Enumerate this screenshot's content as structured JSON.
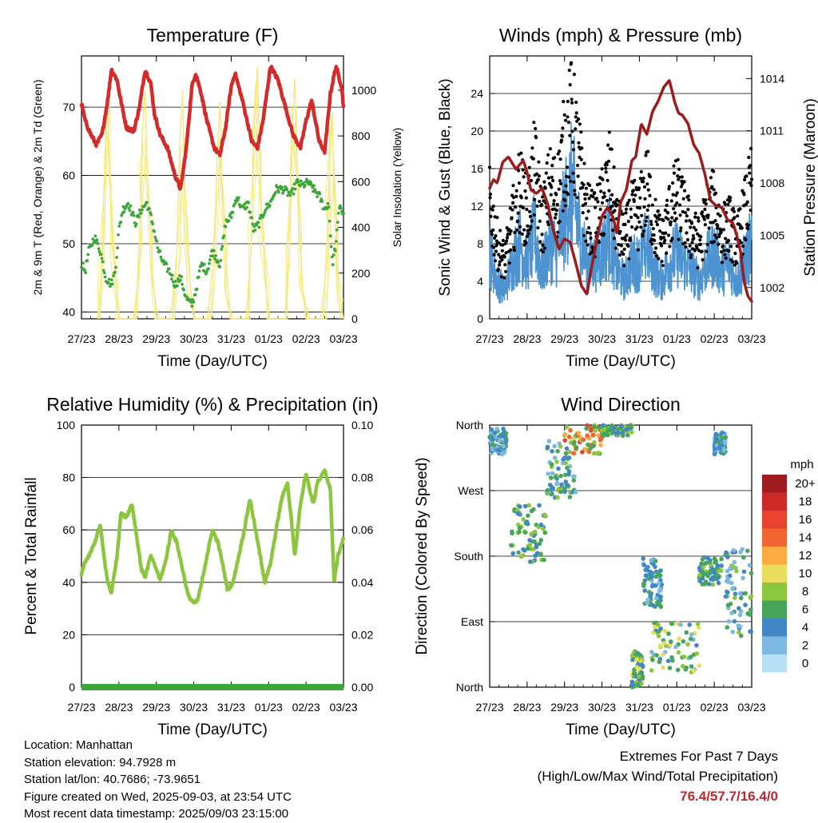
{
  "panels": {
    "temperature": {
      "title": "Temperature (F)",
      "ylabel_left": "2m & 9m T (Red, Orange) & 2m Td (Green)",
      "ylabel_right": "Solar Insolation (Yellow)",
      "xlabel": "Time (Day/UTC)"
    },
    "winds": {
      "title": "Winds (mph) & Pressure (mb)",
      "ylabel_left": "Sonic Wind & Gust (Blue, Black)",
      "ylabel_right": "Station Pressure (Maroon)",
      "xlabel": "Time (Day/UTC)"
    },
    "humidity": {
      "title": "Relative Humidity (%) & Precipitation (in)",
      "ylabel_left": "Percent & Total Rainfall",
      "xlabel": "Time (Day/UTC)"
    },
    "direction": {
      "title": "Wind Direction",
      "ylabel_left": "Direction (Colored By Speed)",
      "xlabel": "Time (Day/UTC)",
      "legend_title": "mph"
    }
  },
  "chart_data": [
    {
      "type": "line",
      "x_ticks": [
        "27/23",
        "28/23",
        "29/23",
        "30/23",
        "31/23",
        "01/23",
        "02/23",
        "03/23"
      ],
      "xlim": [
        0,
        7
      ],
      "ylim": [
        39,
        77.5
      ],
      "y_ticks": [
        40,
        50,
        60,
        70
      ],
      "y2lim": [
        0,
        1150
      ],
      "y2_ticks": [
        0,
        200,
        400,
        600,
        800,
        1000
      ],
      "grid": true,
      "series": [
        {
          "color": "#d42a2a",
          "axis": "left",
          "x": [
            0,
            0.1,
            0.25,
            0.4,
            0.55,
            0.7,
            0.8,
            0.95,
            1.05,
            1.2,
            1.4,
            1.55,
            1.7,
            1.85,
            1.95,
            2.1,
            2.3,
            2.5,
            2.65,
            2.8,
            2.95,
            3.05,
            3.2,
            3.35,
            3.55,
            3.7,
            3.85,
            4.0,
            4.1,
            4.3,
            4.55,
            4.7,
            4.85,
            5.05,
            5.25,
            5.45,
            5.65,
            5.85,
            6.0,
            6.15,
            6.35,
            6.5,
            6.65,
            6.8,
            6.95,
            7.0
          ],
          "y": [
            70.5,
            68,
            66,
            64.5,
            66,
            71,
            75.5,
            74,
            71,
            67,
            66.5,
            70,
            75.5,
            73.5,
            69,
            66,
            64,
            60,
            58,
            64,
            73,
            75,
            72,
            68,
            64,
            63,
            67,
            73,
            75,
            71,
            65,
            64,
            68,
            76,
            74,
            70,
            66,
            64,
            68,
            71,
            65,
            63.5,
            72,
            76,
            73,
            70
          ]
        },
        {
          "color": "#3da63a",
          "axis": "left",
          "x": [
            0,
            0.1,
            0.2,
            0.35,
            0.5,
            0.65,
            0.8,
            0.9,
            1.0,
            1.1,
            1.25,
            1.45,
            1.6,
            1.75,
            1.9,
            2.05,
            2.2,
            2.35,
            2.5,
            2.65,
            2.8,
            2.95,
            3.05,
            3.2,
            3.35,
            3.5,
            3.7,
            3.85,
            4.0,
            4.15,
            4.3,
            4.45,
            4.6,
            4.75,
            4.9,
            5.05,
            5.2,
            5.4,
            5.6,
            5.75,
            5.9,
            6.05,
            6.2,
            6.35,
            6.5,
            6.6,
            6.7,
            6.8,
            6.9,
            7.0
          ],
          "y": [
            47,
            46,
            49,
            51,
            49,
            45,
            44,
            46,
            52,
            55,
            56,
            53,
            55,
            56,
            53,
            49,
            47,
            46,
            44,
            45,
            42,
            41,
            43,
            47,
            46,
            49,
            47,
            53,
            54,
            57,
            55,
            56,
            52,
            53,
            55,
            56,
            58,
            58,
            57,
            59,
            58.5,
            59,
            58,
            57,
            55,
            56,
            47,
            50,
            56,
            54
          ]
        },
        {
          "color": "#f6e87c",
          "axis": "right",
          "x": [
            0.45,
            0.55,
            0.62,
            0.7,
            0.75,
            0.82,
            0.9,
            1.0,
            1.45,
            1.55,
            1.62,
            1.7,
            1.75,
            1.82,
            1.9,
            2.0,
            2.45,
            2.55,
            2.62,
            2.7,
            2.75,
            2.82,
            2.9,
            3.0,
            3.45,
            3.55,
            3.62,
            3.7,
            3.75,
            3.82,
            3.9,
            4.0,
            4.45,
            4.55,
            4.62,
            4.7,
            4.75,
            4.82,
            4.9,
            5.0,
            5.45,
            5.55,
            5.62,
            5.7,
            5.75,
            5.82,
            5.9,
            6.0,
            6.45,
            6.55,
            6.62,
            6.7,
            6.75,
            6.82,
            6.9,
            7.0
          ],
          "y": [
            0,
            300,
            700,
            950,
            600,
            400,
            150,
            0,
            0,
            350,
            800,
            1000,
            700,
            450,
            200,
            0,
            0,
            300,
            750,
            1000,
            650,
            350,
            150,
            0,
            0,
            250,
            700,
            950,
            600,
            400,
            150,
            0,
            0,
            400,
            850,
            1100,
            750,
            450,
            200,
            0,
            0,
            350,
            800,
            1050,
            700,
            450,
            150,
            0,
            0,
            300,
            650,
            900,
            500,
            250,
            100,
            0
          ]
        }
      ]
    },
    {
      "type": "line",
      "x_ticks": [
        "27/23",
        "28/23",
        "29/23",
        "30/23",
        "31/23",
        "01/23",
        "02/23",
        "03/23"
      ],
      "xlim": [
        0,
        7
      ],
      "ylim": [
        0,
        28
      ],
      "y_ticks": [
        0,
        4,
        8,
        12,
        16,
        20,
        24
      ],
      "y2lim": [
        1000.2,
        1015.3
      ],
      "y2_ticks": [
        1002,
        1005,
        1008,
        1011,
        1014
      ],
      "grid": true,
      "series": [
        {
          "color": "#4d93d1",
          "axis": "left",
          "x": [
            0,
            0.2,
            0.4,
            0.6,
            0.8,
            1.0,
            1.2,
            1.4,
            1.6,
            1.8,
            2.0,
            2.2,
            2.4,
            2.6,
            2.8,
            3.0,
            3.2,
            3.4,
            3.6,
            3.8,
            4.0,
            4.2,
            4.4,
            4.6,
            4.8,
            5.0,
            5.2,
            5.4,
            5.6,
            5.8,
            6.0,
            6.2,
            6.4,
            6.6,
            6.8,
            7.0
          ],
          "y": [
            7,
            4,
            3,
            6,
            8,
            6,
            9,
            5,
            8,
            7,
            11,
            14,
            9,
            6,
            6,
            7,
            9,
            5,
            4,
            6,
            6,
            8,
            5,
            4,
            6,
            7,
            6,
            5,
            4,
            6,
            7,
            5,
            6,
            4,
            6,
            8
          ]
        },
        {
          "color": "#000000",
          "axis": "left",
          "x": [
            0,
            0.2,
            0.4,
            0.6,
            0.8,
            1.0,
            1.2,
            1.4,
            1.6,
            1.8,
            2.0,
            2.2,
            2.4,
            2.6,
            2.8,
            3.0,
            3.2,
            3.4,
            3.6,
            3.8,
            4.0,
            4.2,
            4.4,
            4.6,
            4.8,
            5.0,
            5.2,
            5.4,
            5.6,
            5.8,
            6.0,
            6.2,
            6.4,
            6.6,
            6.8,
            7.0
          ],
          "y": [
            12,
            8,
            6,
            10,
            14,
            11,
            16,
            10,
            14,
            13,
            18,
            21,
            16,
            11,
            10,
            12,
            15,
            10,
            8,
            11,
            11,
            14,
            10,
            8,
            11,
            13,
            11,
            9,
            8,
            11,
            12,
            9,
            10,
            8,
            11,
            14
          ]
        },
        {
          "color": "#9b1c1c",
          "axis": "right",
          "x": [
            0,
            0.1,
            0.2,
            0.35,
            0.5,
            0.7,
            0.9,
            1.0,
            1.1,
            1.25,
            1.4,
            1.55,
            1.7,
            1.85,
            2.0,
            2.15,
            2.3,
            2.45,
            2.6,
            2.7,
            2.85,
            3.0,
            3.15,
            3.3,
            3.4,
            3.5,
            3.65,
            3.8,
            3.9,
            4.05,
            4.2,
            4.35,
            4.5,
            4.65,
            4.8,
            4.95,
            5.05,
            5.15,
            5.3,
            5.45,
            5.6,
            5.75,
            5.9,
            6.05,
            6.2,
            6.35,
            6.5,
            6.6,
            6.7,
            6.8,
            6.9,
            7.0
          ],
          "y": [
            1007.7,
            1008.2,
            1008,
            1009.2,
            1009.5,
            1008.8,
            1009.3,
            1008.6,
            1007.6,
            1007.4,
            1007.7,
            1006.8,
            1005.3,
            1004.2,
            1004.8,
            1004.6,
            1003.4,
            1002.1,
            1001.6,
            1002.9,
            1004.6,
            1006.1,
            1006.6,
            1006,
            1005.1,
            1006.9,
            1007.6,
            1009.3,
            1009.5,
            1011.4,
            1010.8,
            1012.1,
            1012.7,
            1013.5,
            1013.9,
            1012.6,
            1012,
            1011.9,
            1011.4,
            1010.2,
            1009.7,
            1008.5,
            1007,
            1006.7,
            1006.6,
            1005.9,
            1005.7,
            1005,
            1004.1,
            1002.3,
            1001.5,
            1001.2
          ]
        }
      ]
    },
    {
      "type": "line",
      "x_ticks": [
        "27/23",
        "28/23",
        "29/23",
        "30/23",
        "31/23",
        "01/23",
        "02/23",
        "03/23"
      ],
      "xlim": [
        0,
        7
      ],
      "ylim": [
        0,
        100
      ],
      "y_ticks": [
        0,
        20,
        40,
        60,
        80,
        100
      ],
      "y2lim": [
        0,
        0.1
      ],
      "y2_ticks": [
        "0.00",
        "0.02",
        "0.04",
        "0.06",
        "0.08",
        "0.10"
      ],
      "grid": true,
      "series": [
        {
          "color": "#8cc63f",
          "axis": "left",
          "x": [
            0,
            0.1,
            0.2,
            0.35,
            0.5,
            0.6,
            0.7,
            0.8,
            0.95,
            1.05,
            1.2,
            1.35,
            1.5,
            1.6,
            1.7,
            1.85,
            2.0,
            2.1,
            2.25,
            2.4,
            2.55,
            2.7,
            2.85,
            3.0,
            3.1,
            3.2,
            3.35,
            3.5,
            3.65,
            3.8,
            3.9,
            4.05,
            4.2,
            4.35,
            4.5,
            4.65,
            4.8,
            4.9,
            5.05,
            5.2,
            5.35,
            5.5,
            5.6,
            5.7,
            5.85,
            6.0,
            6.1,
            6.2,
            6.3,
            6.4,
            6.5,
            6.65,
            6.75,
            6.85,
            7.0
          ],
          "y": [
            43,
            48,
            50,
            55,
            62,
            50,
            40,
            36,
            50,
            66,
            65,
            70,
            55,
            45,
            42,
            50,
            45,
            41,
            48,
            60,
            55,
            45,
            35,
            32,
            33,
            39,
            50,
            60,
            55,
            45,
            37,
            40,
            50,
            60,
            72,
            60,
            48,
            40,
            47,
            60,
            72,
            78,
            65,
            50,
            70,
            82,
            75,
            70,
            78,
            80,
            83,
            75,
            40,
            50,
            57
          ]
        },
        {
          "color": "#3da63a",
          "axis": "left",
          "x": [
            0,
            7
          ],
          "y": [
            0,
            0
          ]
        }
      ]
    },
    {
      "type": "scatter",
      "x_ticks": [
        "27/23",
        "28/23",
        "29/23",
        "30/23",
        "31/23",
        "01/23",
        "02/23",
        "03/23"
      ],
      "xlim": [
        0,
        7
      ],
      "y_ticks": [
        "North",
        "East",
        "South",
        "West",
        "North"
      ],
      "y_values": [
        0,
        90,
        180,
        270,
        360
      ],
      "ylim": [
        0,
        360
      ],
      "grid": true,
      "legend": {
        "placement": "right",
        "labels": [
          "20+",
          "18",
          "16",
          "14",
          "12",
          "10",
          "8",
          "6",
          "4",
          "2",
          "0"
        ],
        "colors": [
          "#9e1c20",
          "#cc2a27",
          "#e8432c",
          "#f26430",
          "#fbaa44",
          "#eadc5c",
          "#8cc63f",
          "#46a55a",
          "#3f88c5",
          "#7db8e3",
          "#b7e0f5"
        ]
      },
      "clusters": [
        {
          "x": [
            0.0,
            0.45
          ],
          "dir": [
            320,
            355
          ],
          "speed": [
            1,
            6
          ]
        },
        {
          "x": [
            0.55,
            1.5
          ],
          "dir": [
            170,
            250
          ],
          "speed": [
            3,
            9
          ]
        },
        {
          "x": [
            1.5,
            2.3
          ],
          "dir": [
            260,
            340
          ],
          "speed": [
            2,
            8
          ]
        },
        {
          "x": [
            2.0,
            3.0
          ],
          "dir": [
            320,
            360
          ],
          "speed": [
            5,
            16
          ]
        },
        {
          "x": [
            3.0,
            3.8
          ],
          "dir": [
            345,
            360
          ],
          "speed": [
            4,
            9
          ]
        },
        {
          "x": [
            3.8,
            4.1
          ],
          "dir": [
            0,
            50
          ],
          "speed": [
            3,
            10
          ]
        },
        {
          "x": [
            4.1,
            4.6
          ],
          "dir": [
            110,
            180
          ],
          "speed": [
            2,
            6
          ]
        },
        {
          "x": [
            4.3,
            5.6
          ],
          "dir": [
            20,
            90
          ],
          "speed": [
            2,
            10
          ]
        },
        {
          "x": [
            5.6,
            6.2
          ],
          "dir": [
            140,
            180
          ],
          "speed": [
            3,
            8
          ]
        },
        {
          "x": [
            6.0,
            6.3
          ],
          "dir": [
            320,
            350
          ],
          "speed": [
            2,
            6
          ]
        },
        {
          "x": [
            6.3,
            7.0
          ],
          "dir": [
            70,
            190
          ],
          "speed": [
            1,
            8
          ]
        }
      ]
    }
  ],
  "info": {
    "location": "Location: Manhattan",
    "elevation": "Station elevation: 94.7928 m",
    "latlon": "Station lat/lon: 40.7686; -73.9651",
    "created": "Figure created on Wed, 2025-09-03, at 23:54 UTC",
    "recent": "Most recent data timestamp: 2025/09/03 23:15:00"
  },
  "extremes": {
    "title": "Extremes For Past 7 Days",
    "subtitle": "(High/Low/Max Wind/Total Precipitation)",
    "values": "76.4/57.7/16.4/0"
  }
}
